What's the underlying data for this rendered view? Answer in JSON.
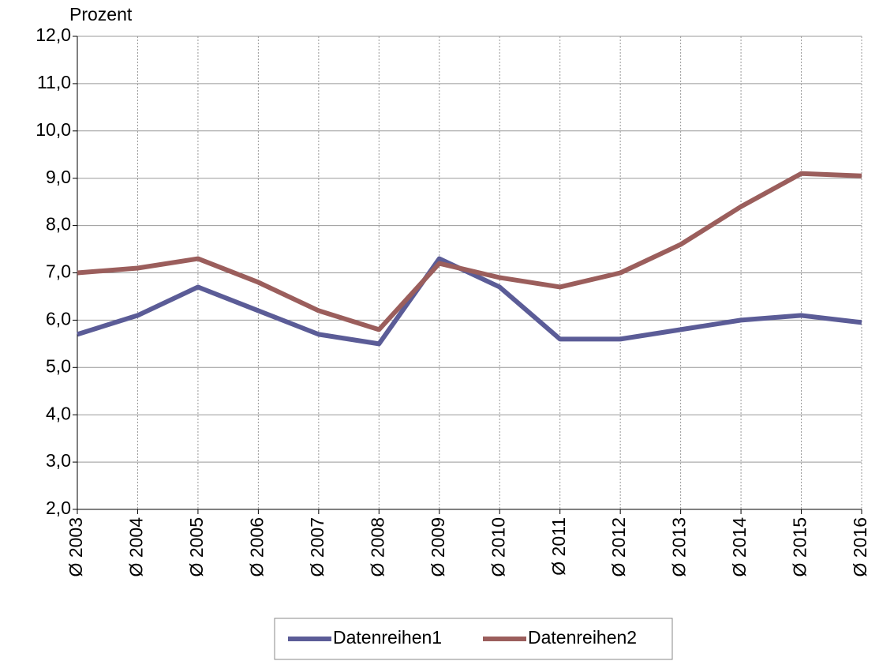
{
  "chart_data": {
    "type": "line",
    "y_label": "Prozent",
    "categories": [
      "Ø 2003",
      "Ø 2004",
      "Ø 2005",
      "Ø 2006",
      "Ø 2007",
      "Ø 2008",
      "Ø 2009",
      "Ø 2010",
      "Ø 2011",
      "Ø 2012",
      "Ø 2013",
      "Ø 2014",
      "Ø 2015",
      "Ø 2016"
    ],
    "series": [
      {
        "name": "Datenreihen1",
        "color": "#5b5c97",
        "values": [
          5.7,
          6.1,
          6.7,
          6.2,
          5.7,
          5.5,
          7.3,
          6.7,
          5.6,
          5.6,
          5.8,
          6.0,
          6.1,
          5.95
        ]
      },
      {
        "name": "Datenreihen2",
        "color": "#9b5e5c",
        "values": [
          7.0,
          7.1,
          7.3,
          6.8,
          6.2,
          5.8,
          7.2,
          6.9,
          6.7,
          7.0,
          7.6,
          8.4,
          9.1,
          9.05
        ]
      }
    ],
    "ylim": [
      2,
      12
    ],
    "yticks": [
      {
        "value": 2,
        "label": "2,0"
      },
      {
        "value": 3,
        "label": "3,0"
      },
      {
        "value": 4,
        "label": "4,0"
      },
      {
        "value": 5,
        "label": "5,0"
      },
      {
        "value": 6,
        "label": "6,0"
      },
      {
        "value": 7,
        "label": "7,0"
      },
      {
        "value": 8,
        "label": "8,0"
      },
      {
        "value": 9,
        "label": "9,0"
      },
      {
        "value": 10,
        "label": "10,0"
      },
      {
        "value": 11,
        "label": "11,0"
      },
      {
        "value": 12,
        "label": "12,0"
      }
    ],
    "grid": true,
    "legend": "bottom"
  }
}
